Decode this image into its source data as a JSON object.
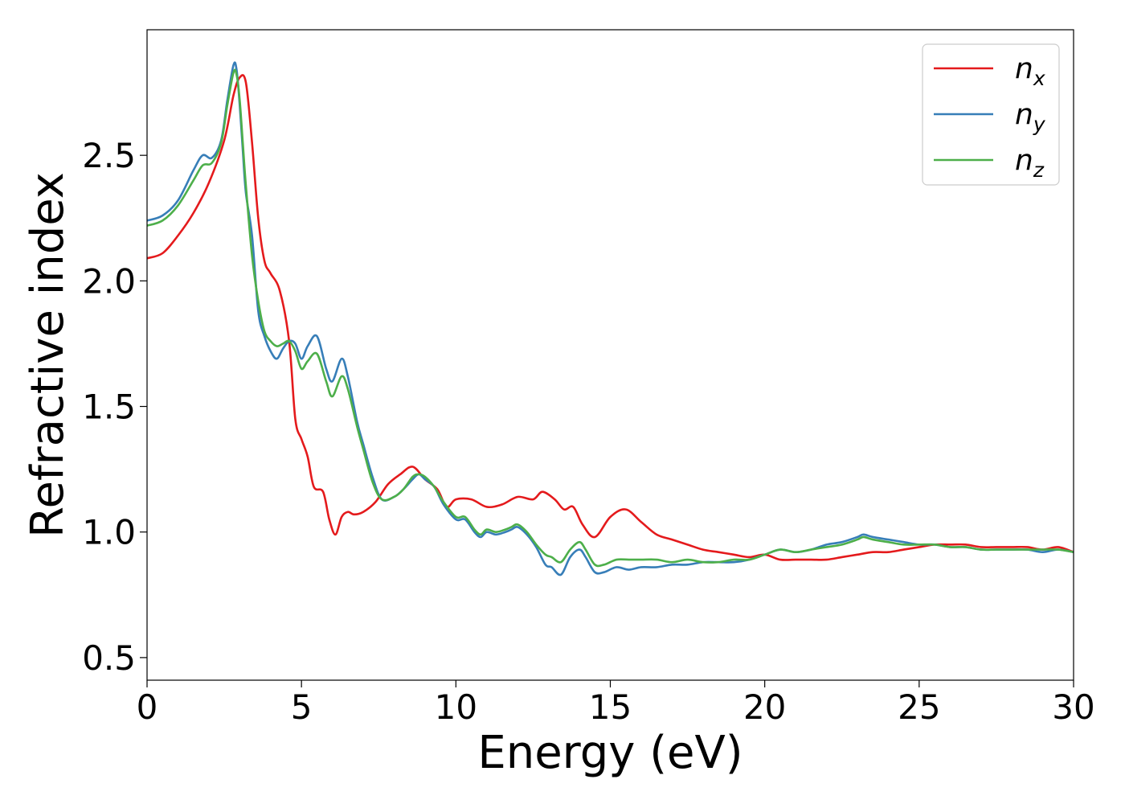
{
  "chart_data": {
    "type": "line",
    "xlabel": "Energy (eV)",
    "ylabel": "Refractive index",
    "xlim": [
      0,
      30
    ],
    "ylim": [
      0.41,
      3.0
    ],
    "xticks": [
      0,
      5,
      10,
      15,
      20,
      25,
      30
    ],
    "xtick_labels": [
      "0",
      "5",
      "10",
      "15",
      "20",
      "25",
      "30"
    ],
    "yticks": [
      0.5,
      1.0,
      1.5,
      2.0,
      2.5
    ],
    "ytick_labels": [
      "0.5",
      "1.0",
      "1.5",
      "2.0",
      "2.5"
    ],
    "grid": false,
    "legend_position": "top-right",
    "series": [
      {
        "name": "n",
        "subscript": "x",
        "color": "#e41a1c",
        "x": [
          0,
          0.5,
          1.0,
          1.5,
          2.0,
          2.5,
          2.8,
          3.0,
          3.2,
          3.4,
          3.6,
          3.8,
          4.0,
          4.3,
          4.6,
          4.8,
          5.0,
          5.2,
          5.4,
          5.7,
          5.9,
          6.1,
          6.3,
          6.5,
          6.7,
          7.0,
          7.4,
          7.8,
          8.2,
          8.6,
          9.0,
          9.4,
          9.7,
          10.0,
          10.5,
          11.0,
          11.5,
          12.0,
          12.5,
          12.8,
          13.2,
          13.5,
          13.8,
          14.1,
          14.5,
          15.0,
          15.5,
          16.0,
          16.5,
          17.0,
          17.5,
          18.0,
          18.5,
          19.0,
          19.5,
          20.0,
          20.5,
          21.0,
          21.5,
          22.0,
          22.5,
          23.0,
          23.5,
          24.0,
          24.5,
          25.0,
          25.5,
          26.0,
          26.5,
          27.0,
          27.5,
          28.0,
          28.5,
          29.0,
          29.5,
          30.0
        ],
        "y": [
          2.09,
          2.11,
          2.18,
          2.27,
          2.39,
          2.56,
          2.74,
          2.81,
          2.79,
          2.55,
          2.25,
          2.08,
          2.03,
          1.96,
          1.76,
          1.45,
          1.37,
          1.3,
          1.18,
          1.16,
          1.05,
          0.99,
          1.06,
          1.08,
          1.07,
          1.08,
          1.12,
          1.19,
          1.23,
          1.26,
          1.21,
          1.17,
          1.1,
          1.13,
          1.13,
          1.1,
          1.11,
          1.14,
          1.13,
          1.16,
          1.13,
          1.09,
          1.1,
          1.03,
          0.98,
          1.06,
          1.09,
          1.04,
          0.99,
          0.97,
          0.95,
          0.93,
          0.92,
          0.91,
          0.9,
          0.91,
          0.89,
          0.89,
          0.89,
          0.89,
          0.9,
          0.91,
          0.92,
          0.92,
          0.93,
          0.94,
          0.95,
          0.95,
          0.95,
          0.94,
          0.94,
          0.94,
          0.94,
          0.93,
          0.94,
          0.92
        ]
      },
      {
        "name": "n",
        "subscript": "y",
        "color": "#377eb8",
        "x": [
          0,
          0.5,
          1.0,
          1.5,
          1.8,
          2.1,
          2.4,
          2.6,
          2.8,
          2.9,
          3.0,
          3.1,
          3.2,
          3.4,
          3.6,
          3.8,
          4.0,
          4.2,
          4.4,
          4.6,
          4.8,
          5.0,
          5.2,
          5.5,
          5.8,
          6.0,
          6.3,
          6.5,
          6.8,
          7.0,
          7.3,
          7.6,
          8.0,
          8.3,
          8.6,
          8.8,
          9.0,
          9.3,
          9.6,
          10.0,
          10.3,
          10.6,
          10.8,
          11.0,
          11.3,
          11.6,
          11.8,
          12.0,
          12.3,
          12.6,
          12.9,
          13.1,
          13.4,
          13.7,
          14.0,
          14.2,
          14.5,
          14.8,
          15.2,
          15.6,
          16.0,
          16.5,
          17.0,
          17.5,
          18.0,
          18.5,
          19.0,
          19.5,
          20.0,
          20.5,
          21.0,
          21.5,
          22.0,
          22.5,
          23.0,
          23.2,
          23.5,
          24.0,
          24.5,
          25.0,
          25.5,
          26.0,
          26.5,
          27.0,
          27.5,
          28.0,
          28.5,
          29.0,
          29.5,
          30.0
        ],
        "y": [
          2.24,
          2.26,
          2.32,
          2.44,
          2.5,
          2.49,
          2.56,
          2.72,
          2.86,
          2.84,
          2.7,
          2.52,
          2.35,
          2.18,
          1.88,
          1.78,
          1.72,
          1.69,
          1.73,
          1.76,
          1.75,
          1.69,
          1.74,
          1.78,
          1.65,
          1.6,
          1.69,
          1.62,
          1.44,
          1.35,
          1.22,
          1.13,
          1.14,
          1.17,
          1.21,
          1.23,
          1.21,
          1.18,
          1.11,
          1.05,
          1.05,
          1.0,
          0.98,
          1.0,
          0.99,
          1.0,
          1.01,
          1.02,
          0.99,
          0.94,
          0.87,
          0.86,
          0.83,
          0.9,
          0.93,
          0.9,
          0.84,
          0.84,
          0.86,
          0.85,
          0.86,
          0.86,
          0.87,
          0.87,
          0.88,
          0.88,
          0.88,
          0.89,
          0.91,
          0.93,
          0.92,
          0.93,
          0.95,
          0.96,
          0.98,
          0.99,
          0.98,
          0.97,
          0.96,
          0.95,
          0.95,
          0.94,
          0.94,
          0.93,
          0.93,
          0.93,
          0.93,
          0.92,
          0.93,
          0.92
        ]
      },
      {
        "name": "n",
        "subscript": "z",
        "color": "#4daf4a",
        "x": [
          0,
          0.5,
          1.0,
          1.5,
          1.8,
          2.1,
          2.4,
          2.6,
          2.8,
          2.9,
          3.0,
          3.1,
          3.2,
          3.4,
          3.6,
          3.8,
          4.0,
          4.2,
          4.4,
          4.6,
          4.8,
          5.0,
          5.2,
          5.5,
          5.8,
          6.0,
          6.3,
          6.5,
          6.8,
          7.0,
          7.3,
          7.6,
          8.0,
          8.3,
          8.6,
          8.8,
          9.0,
          9.3,
          9.6,
          10.0,
          10.3,
          10.6,
          10.8,
          11.0,
          11.3,
          11.6,
          11.8,
          12.0,
          12.3,
          12.6,
          12.9,
          13.1,
          13.4,
          13.7,
          14.0,
          14.2,
          14.5,
          14.8,
          15.2,
          15.6,
          16.0,
          16.5,
          17.0,
          17.5,
          18.0,
          18.5,
          19.0,
          19.5,
          20.0,
          20.5,
          21.0,
          21.5,
          22.0,
          22.5,
          23.0,
          23.2,
          23.5,
          24.0,
          24.5,
          25.0,
          25.5,
          26.0,
          26.5,
          27.0,
          27.5,
          28.0,
          28.5,
          29.0,
          29.5,
          30.0
        ],
        "y": [
          2.22,
          2.24,
          2.3,
          2.4,
          2.46,
          2.47,
          2.55,
          2.7,
          2.83,
          2.82,
          2.72,
          2.55,
          2.38,
          2.1,
          1.92,
          1.8,
          1.76,
          1.74,
          1.75,
          1.76,
          1.72,
          1.65,
          1.68,
          1.71,
          1.6,
          1.54,
          1.62,
          1.57,
          1.42,
          1.33,
          1.2,
          1.13,
          1.14,
          1.17,
          1.22,
          1.23,
          1.22,
          1.18,
          1.12,
          1.06,
          1.06,
          1.01,
          0.99,
          1.01,
          1.0,
          1.01,
          1.02,
          1.03,
          1.0,
          0.95,
          0.91,
          0.9,
          0.88,
          0.93,
          0.96,
          0.93,
          0.87,
          0.87,
          0.89,
          0.89,
          0.89,
          0.89,
          0.88,
          0.89,
          0.88,
          0.88,
          0.89,
          0.89,
          0.91,
          0.93,
          0.92,
          0.93,
          0.94,
          0.95,
          0.97,
          0.98,
          0.97,
          0.96,
          0.95,
          0.95,
          0.95,
          0.94,
          0.94,
          0.93,
          0.93,
          0.93,
          0.93,
          0.93,
          0.93,
          0.92
        ]
      }
    ]
  }
}
